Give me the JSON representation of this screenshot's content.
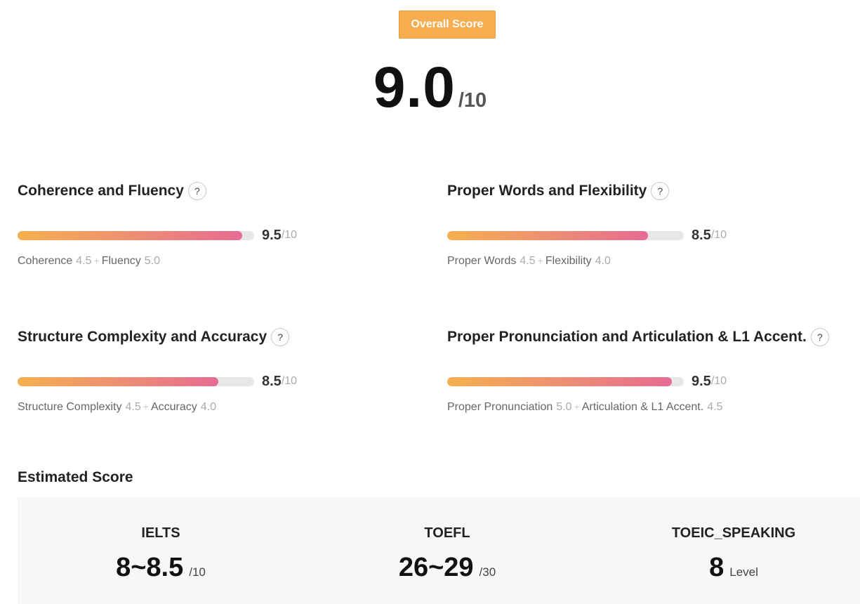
{
  "overall": {
    "badge_label": "Overall Score",
    "score": "9.0",
    "max": "/10"
  },
  "categories": [
    {
      "title": "Coherence and Fluency",
      "help": "?",
      "score": "9.5",
      "max": "/10",
      "progress": 0.95,
      "subs": [
        {
          "label": "Coherence",
          "value": "4.5"
        },
        {
          "label": "Fluency",
          "value": "5.0"
        }
      ]
    },
    {
      "title": "Proper Words and Flexibility",
      "help": "?",
      "score": "8.5",
      "max": "/10",
      "progress": 0.85,
      "subs": [
        {
          "label": "Proper Words",
          "value": "4.5"
        },
        {
          "label": "Flexibility",
          "value": "4.0"
        }
      ]
    },
    {
      "title": "Structure Complexity and Accuracy",
      "help": "?",
      "score": "8.5",
      "max": "/10",
      "progress": 0.85,
      "subs": [
        {
          "label": "Structure Complexity",
          "value": "4.5"
        },
        {
          "label": "Accuracy",
          "value": "4.0"
        }
      ]
    },
    {
      "title": "Proper Pronunciation and Articulation & L1 Accent.",
      "help": "?",
      "score": "9.5",
      "max": "/10",
      "progress": 0.95,
      "subs": [
        {
          "label": "Proper Pronunciation",
          "value": "5.0"
        },
        {
          "label": "Articulation & L1 Accent.",
          "value": "4.5"
        }
      ]
    }
  ],
  "plus_sign": "+",
  "estimated": {
    "heading": "Estimated Score",
    "tests": [
      {
        "name": "IELTS",
        "score": "8~8.5",
        "unit": "/10"
      },
      {
        "name": "TOEFL",
        "score": "26~29",
        "unit": "/30"
      },
      {
        "name": "TOEIC_SPEAKING",
        "score": "8",
        "unit": "Level"
      }
    ]
  },
  "colors": {
    "badge": "#f5ad4f",
    "bar_start": "#f5b04e",
    "bar_end": "#e66b92",
    "bar_track": "#e7e7e7",
    "panel_bg": "#f7f7f7"
  }
}
